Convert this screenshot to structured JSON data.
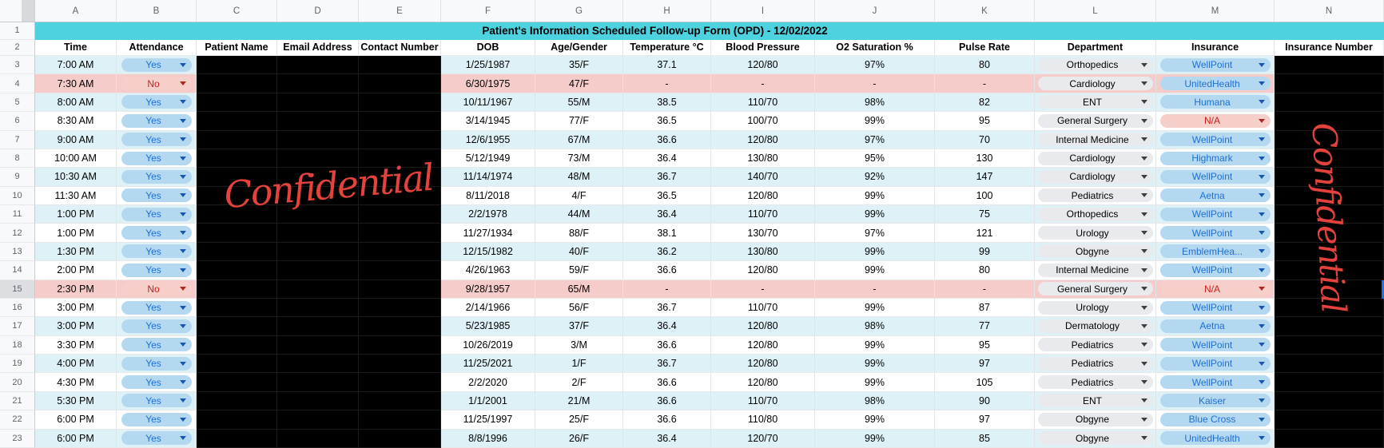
{
  "title": "Patient's Information Scheduled Follow-up Form (OPD) - 12/02/2022",
  "column_letters": [
    "A",
    "B",
    "C",
    "D",
    "E",
    "F",
    "G",
    "H",
    "I",
    "J",
    "K",
    "L",
    "M",
    "N"
  ],
  "gutter_numbers": {
    "title_row": "1",
    "header_row": "2"
  },
  "headers": [
    "Time",
    "Attendance",
    "Patient Name",
    "Email Address",
    "Contact Number",
    "DOB",
    "Age/Gender",
    "Temperature °C",
    "Blood Pressure",
    "O2 Saturation %",
    "Pulse Rate",
    "Department",
    "Insurance",
    "Insurance Number"
  ],
  "watermark": {
    "text": "Confidential"
  },
  "colors": {
    "title_bg": "#4dd3e0",
    "band_cyan": "#def1f7",
    "band_pink": "#f5ccc9",
    "chip_blue_bg": "#b5d8f1",
    "chip_blue_text": "#1f6fd2",
    "chip_red_bg": "#f6cfcb",
    "chip_red_text": "#c5221f",
    "chip_gray_bg": "#e8eaed",
    "watermark_red": "#e4423c",
    "selection_blue": "#1a73e8"
  },
  "rows": [
    {
      "num": "3",
      "time": "7:00 AM",
      "attendance": "Yes",
      "attendance_style": "blue",
      "dob": "1/25/1987",
      "age_gender": "35/F",
      "temperature": "37.1",
      "blood_pressure": "120/80",
      "o2_saturation": "97%",
      "pulse_rate": "80",
      "department": "Orthopedics",
      "insurance": "WellPoint",
      "insurance_style": "blue",
      "band": "cyan"
    },
    {
      "num": "4",
      "time": "7:30 AM",
      "attendance": "No",
      "attendance_style": "red",
      "dob": "6/30/1975",
      "age_gender": "47/F",
      "temperature": "-",
      "blood_pressure": "-",
      "o2_saturation": "-",
      "pulse_rate": "-",
      "department": "Cardiology",
      "insurance": "UnitedHealth",
      "insurance_style": "blue",
      "band": "pink"
    },
    {
      "num": "5",
      "time": "8:00 AM",
      "attendance": "Yes",
      "attendance_style": "blue",
      "dob": "10/11/1967",
      "age_gender": "55/M",
      "temperature": "38.5",
      "blood_pressure": "110/70",
      "o2_saturation": "98%",
      "pulse_rate": "82",
      "department": "ENT",
      "insurance": "Humana",
      "insurance_style": "blue",
      "band": "cyan"
    },
    {
      "num": "6",
      "time": "8:30 AM",
      "attendance": "Yes",
      "attendance_style": "blue",
      "dob": "3/14/1945",
      "age_gender": "77/F",
      "temperature": "36.5",
      "blood_pressure": "100/70",
      "o2_saturation": "99%",
      "pulse_rate": "95",
      "department": "General Surgery",
      "insurance": "N/A",
      "insurance_style": "red",
      "band": "white"
    },
    {
      "num": "7",
      "time": "9:00 AM",
      "attendance": "Yes",
      "attendance_style": "blue",
      "dob": "12/6/1955",
      "age_gender": "67/M",
      "temperature": "36.6",
      "blood_pressure": "120/80",
      "o2_saturation": "97%",
      "pulse_rate": "70",
      "department": "Internal Medicine",
      "insurance": "WellPoint",
      "insurance_style": "blue",
      "band": "cyan"
    },
    {
      "num": "8",
      "time": "10:00 AM",
      "attendance": "Yes",
      "attendance_style": "blue",
      "dob": "5/12/1949",
      "age_gender": "73/M",
      "temperature": "36.4",
      "blood_pressure": "130/80",
      "o2_saturation": "95%",
      "pulse_rate": "130",
      "department": "Cardiology",
      "insurance": "Highmark",
      "insurance_style": "blue",
      "band": "white"
    },
    {
      "num": "9",
      "time": "10:30 AM",
      "attendance": "Yes",
      "attendance_style": "blue",
      "dob": "11/14/1974",
      "age_gender": "48/M",
      "temperature": "36.7",
      "blood_pressure": "140/70",
      "o2_saturation": "92%",
      "pulse_rate": "147",
      "department": "Cardiology",
      "insurance": "WellPoint",
      "insurance_style": "blue",
      "band": "cyan"
    },
    {
      "num": "10",
      "time": "11:30 AM",
      "attendance": "Yes",
      "attendance_style": "blue",
      "dob": "8/11/2018",
      "age_gender": "4/F",
      "temperature": "36.5",
      "blood_pressure": "120/80",
      "o2_saturation": "99%",
      "pulse_rate": "100",
      "department": "Pediatrics",
      "insurance": "Aetna",
      "insurance_style": "blue",
      "band": "white"
    },
    {
      "num": "11",
      "time": "1:00 PM",
      "attendance": "Yes",
      "attendance_style": "blue",
      "dob": "2/2/1978",
      "age_gender": "44/M",
      "temperature": "36.4",
      "blood_pressure": "110/70",
      "o2_saturation": "99%",
      "pulse_rate": "75",
      "department": "Orthopedics",
      "insurance": "WellPoint",
      "insurance_style": "blue",
      "band": "cyan"
    },
    {
      "num": "12",
      "time": "1:00 PM",
      "attendance": "Yes",
      "attendance_style": "blue",
      "dob": "11/27/1934",
      "age_gender": "88/F",
      "temperature": "38.1",
      "blood_pressure": "130/70",
      "o2_saturation": "97%",
      "pulse_rate": "121",
      "department": "Urology",
      "insurance": "WellPoint",
      "insurance_style": "blue",
      "band": "white"
    },
    {
      "num": "13",
      "time": "1:30 PM",
      "attendance": "Yes",
      "attendance_style": "blue",
      "dob": "12/15/1982",
      "age_gender": "40/F",
      "temperature": "36.2",
      "blood_pressure": "130/80",
      "o2_saturation": "99%",
      "pulse_rate": "99",
      "department": "Obgyne",
      "insurance": "EmblemHea...",
      "insurance_style": "blue",
      "band": "cyan"
    },
    {
      "num": "14",
      "time": "2:00 PM",
      "attendance": "Yes",
      "attendance_style": "blue",
      "dob": "4/26/1963",
      "age_gender": "59/F",
      "temperature": "36.6",
      "blood_pressure": "120/80",
      "o2_saturation": "99%",
      "pulse_rate": "80",
      "department": "Internal Medicine",
      "insurance": "WellPoint",
      "insurance_style": "blue",
      "band": "white"
    },
    {
      "num": "15",
      "time": "2:30 PM",
      "attendance": "No",
      "attendance_style": "red",
      "dob": "9/28/1957",
      "age_gender": "65/M",
      "temperature": "-",
      "blood_pressure": "-",
      "o2_saturation": "-",
      "pulse_rate": "-",
      "department": "General Surgery",
      "insurance": "N/A",
      "insurance_style": "red",
      "band": "pink"
    },
    {
      "num": "16",
      "time": "3:00 PM",
      "attendance": "Yes",
      "attendance_style": "blue",
      "dob": "2/14/1966",
      "age_gender": "56/F",
      "temperature": "36.7",
      "blood_pressure": "110/70",
      "o2_saturation": "99%",
      "pulse_rate": "87",
      "department": "Urology",
      "insurance": "WellPoint",
      "insurance_style": "blue",
      "band": "white"
    },
    {
      "num": "17",
      "time": "3:00 PM",
      "attendance": "Yes",
      "attendance_style": "blue",
      "dob": "5/23/1985",
      "age_gender": "37/F",
      "temperature": "36.4",
      "blood_pressure": "120/80",
      "o2_saturation": "98%",
      "pulse_rate": "77",
      "department": "Dermatology",
      "insurance": "Aetna",
      "insurance_style": "blue",
      "band": "cyan"
    },
    {
      "num": "18",
      "time": "3:30 PM",
      "attendance": "Yes",
      "attendance_style": "blue",
      "dob": "10/26/2019",
      "age_gender": "3/M",
      "temperature": "36.6",
      "blood_pressure": "120/80",
      "o2_saturation": "99%",
      "pulse_rate": "95",
      "department": "Pediatrics",
      "insurance": "WellPoint",
      "insurance_style": "blue",
      "band": "white"
    },
    {
      "num": "19",
      "time": "4:00 PM",
      "attendance": "Yes",
      "attendance_style": "blue",
      "dob": "11/25/2021",
      "age_gender": "1/F",
      "temperature": "36.7",
      "blood_pressure": "120/80",
      "o2_saturation": "99%",
      "pulse_rate": "97",
      "department": "Pediatrics",
      "insurance": "WellPoint",
      "insurance_style": "blue",
      "band": "cyan"
    },
    {
      "num": "20",
      "time": "4:30 PM",
      "attendance": "Yes",
      "attendance_style": "blue",
      "dob": "2/2/2020",
      "age_gender": "2/F",
      "temperature": "36.6",
      "blood_pressure": "120/80",
      "o2_saturation": "99%",
      "pulse_rate": "105",
      "department": "Pediatrics",
      "insurance": "WellPoint",
      "insurance_style": "blue",
      "band": "white"
    },
    {
      "num": "21",
      "time": "5:30 PM",
      "attendance": "Yes",
      "attendance_style": "blue",
      "dob": "1/1/2001",
      "age_gender": "21/M",
      "temperature": "36.6",
      "blood_pressure": "110/70",
      "o2_saturation": "98%",
      "pulse_rate": "90",
      "department": "ENT",
      "insurance": "Kaiser",
      "insurance_style": "blue",
      "band": "cyan"
    },
    {
      "num": "22",
      "time": "6:00 PM",
      "attendance": "Yes",
      "attendance_style": "blue",
      "dob": "11/25/1997",
      "age_gender": "25/F",
      "temperature": "36.6",
      "blood_pressure": "110/80",
      "o2_saturation": "99%",
      "pulse_rate": "97",
      "department": "Obgyne",
      "insurance": "Blue Cross",
      "insurance_style": "blue",
      "band": "white"
    },
    {
      "num": "23",
      "time": "6:00 PM",
      "attendance": "Yes",
      "attendance_style": "blue",
      "dob": "8/8/1996",
      "age_gender": "26/F",
      "temperature": "36.4",
      "blood_pressure": "120/70",
      "o2_saturation": "99%",
      "pulse_rate": "85",
      "department": "Obgyne",
      "insurance": "UnitedHealth",
      "insurance_style": "blue",
      "band": "cyan"
    }
  ]
}
